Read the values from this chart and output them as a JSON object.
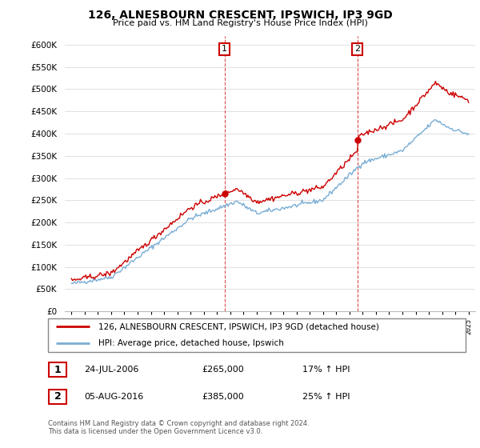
{
  "title": "126, ALNESBOURN CRESCENT, IPSWICH, IP3 9GD",
  "subtitle": "Price paid vs. HM Land Registry's House Price Index (HPI)",
  "legend_line1": "126, ALNESBOURN CRESCENT, IPSWICH, IP3 9GD (detached house)",
  "legend_line2": "HPI: Average price, detached house, Ipswich",
  "sale1_date": "24-JUL-2006",
  "sale1_price": "£265,000",
  "sale1_hpi": "17% ↑ HPI",
  "sale2_date": "05-AUG-2016",
  "sale2_price": "£385,000",
  "sale2_hpi": "25% ↑ HPI",
  "footnote1": "Contains HM Land Registry data © Crown copyright and database right 2024.",
  "footnote2": "This data is licensed under the Open Government Licence v3.0.",
  "red_color": "#cc0000",
  "blue_color": "#7aadd4",
  "grid_color": "#e0e0e0",
  "ylim_max": 620000,
  "ytick_step": 50000,
  "sale1_year": 2006.56,
  "sale2_year": 2016.59,
  "sale1_price_val": 265000,
  "sale2_price_val": 385000
}
